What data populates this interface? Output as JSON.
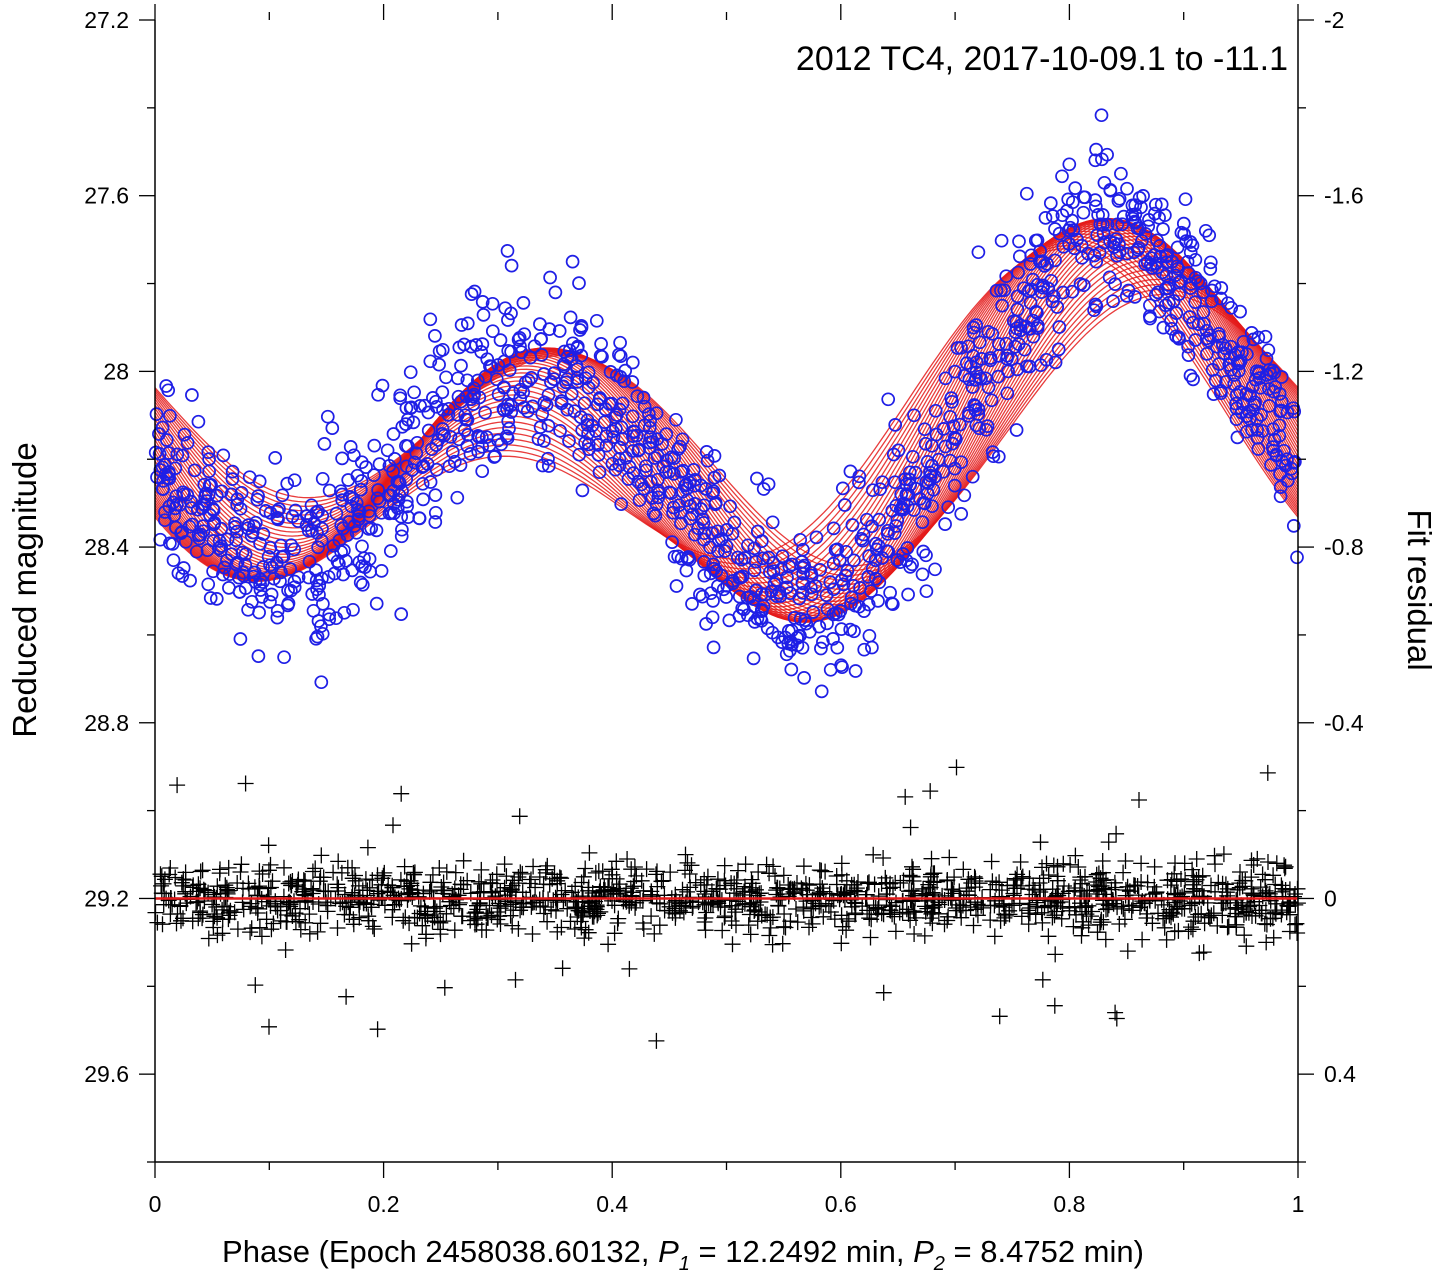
{
  "chart_data": {
    "type": "scatter",
    "title": "2012 TC4, 2017-10-09.1 to -11.1",
    "xlabel": {
      "prefix": "Phase (Epoch 2458038.60132, ",
      "p1_symbol": "P",
      "p1_sub": "1",
      "p1_value": " = 12.2492 min, ",
      "p2_symbol": "P",
      "p2_sub": "2",
      "p2_value": " = 8.4752 min)"
    },
    "ylabel_left": "Reduced magnitude",
    "ylabel_right": "Fit residual",
    "xlim": [
      0,
      1
    ],
    "ylim_left": [
      27.2,
      29.8
    ],
    "ylim_left_inverted": true,
    "ylim_right": [
      -2,
      0.6
    ],
    "x_ticks": [
      "0",
      "0.2",
      "0.4",
      "0.6",
      "0.8",
      "1"
    ],
    "y_left_ticks": [
      "27.2",
      "27.6",
      "28",
      "28.4",
      "28.8",
      "29.2",
      "29.6"
    ],
    "y_right_ticks": [
      "-2",
      "-1.6",
      "-1.2",
      "-0.8",
      "-0.4",
      "0",
      "0.4"
    ],
    "series": [
      {
        "name": "Observed reduced magnitude",
        "marker": "circle",
        "color": "#1f1fe6",
        "model": {
          "mean": 28.16,
          "p1_amp": 0.19,
          "p1_phase": -0.9,
          "p2_amp": 0.31,
          "p2_phase": 0.5,
          "approx_points": 1400,
          "noise_sd": 0.085
        }
      },
      {
        "name": "Two-period Fourier fit curves",
        "marker": "line",
        "color": "#e41a1a",
        "curves": 40
      },
      {
        "name": "Fit residual",
        "marker": "plus",
        "color": "#000000",
        "axis": "right",
        "model": {
          "center": 0,
          "noise_sd": 0.04,
          "approx_points": 1400
        }
      },
      {
        "name": "Zero residual line",
        "marker": "line",
        "color": "#e41a1a",
        "axis": "right",
        "value": 0
      }
    ]
  }
}
